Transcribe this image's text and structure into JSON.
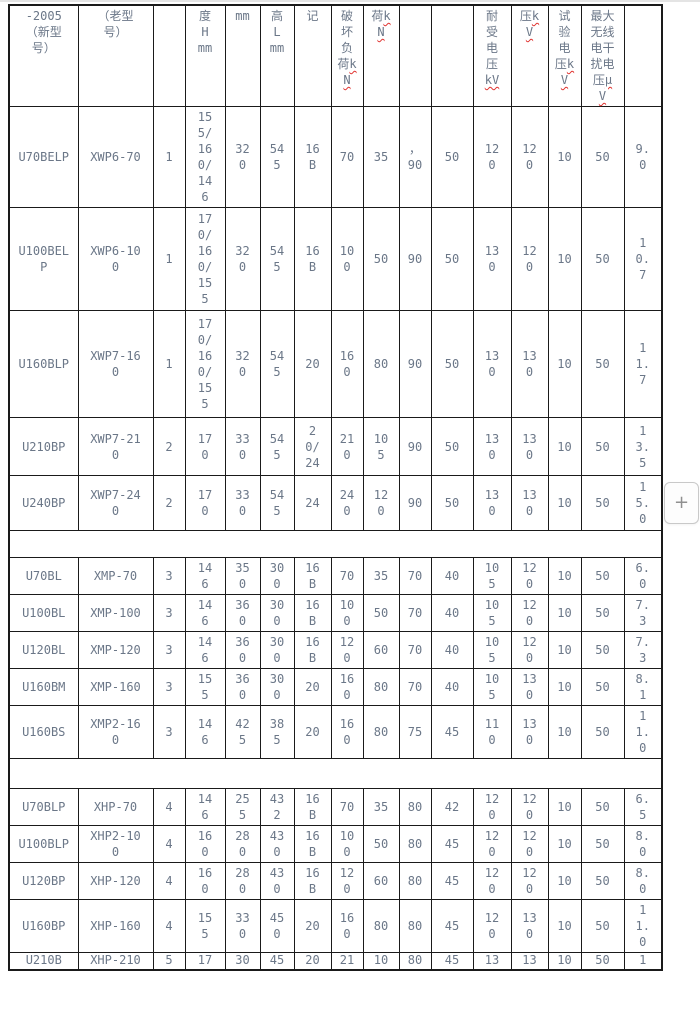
{
  "colors": {
    "text": "#6b7788",
    "border": "#1a1a1a",
    "squiggle": "#e0312e",
    "button_border": "#c9c9c9",
    "button_text": "#909090",
    "divider": "#e4e4e4"
  },
  "add_button": {
    "label": "+"
  },
  "table": {
    "columns": [
      {
        "id": "model-new",
        "label": "-2005（新型号）",
        "unit": ""
      },
      {
        "id": "model-old",
        "label": "（老型号）",
        "unit": ""
      },
      {
        "id": "figure-no",
        "label": "",
        "unit": ""
      },
      {
        "id": "height-h",
        "label": "度H mm",
        "unit": ""
      },
      {
        "id": "diameter-mm",
        "label": "mm",
        "unit": ""
      },
      {
        "id": "distance-l",
        "label": "高L mm",
        "unit": ""
      },
      {
        "id": "mark",
        "label": "记",
        "unit": ""
      },
      {
        "id": "breaking-load",
        "label": "破坏负荷",
        "unit": "kN"
      },
      {
        "id": "load",
        "label": "荷",
        "unit": "kN"
      },
      {
        "id": "col-10",
        "label": "",
        "unit": ""
      },
      {
        "id": "col-11",
        "label": "",
        "unit": ""
      },
      {
        "id": "withstand-voltage",
        "label": "耐受电压",
        "unit": "kV"
      },
      {
        "id": "voltage",
        "label": "压",
        "unit": "kV"
      },
      {
        "id": "test-voltage",
        "label": "试验电压",
        "unit": "kV"
      },
      {
        "id": "max-rfi-voltage",
        "label": "最大无线电干扰电压",
        "unit": "μV"
      },
      {
        "id": "col-16",
        "label": "",
        "unit": ""
      }
    ],
    "rows": [
      {
        "type": "data",
        "cells": [
          "U70BELP",
          "XWP6-70",
          "1",
          "155/160/146",
          "320",
          "545",
          "16B",
          "70",
          "35",
          "，90",
          "50",
          "120",
          "120",
          "10",
          "50",
          "9.0"
        ]
      },
      {
        "type": "data",
        "cells": [
          "U100BELP",
          "XWP6-100",
          "1",
          "170/160/155",
          "320",
          "545",
          "16B",
          "100",
          "50",
          "90",
          "50",
          "130",
          "120",
          "10",
          "50",
          "10.7"
        ]
      },
      {
        "type": "data",
        "cells": [
          "U160BLP",
          "XWP7-160",
          "1",
          "170/160/155",
          "320",
          "545",
          "20",
          "160",
          "80",
          "90",
          "50",
          "130",
          "130",
          "10",
          "50",
          "11.7"
        ]
      },
      {
        "type": "data",
        "cells": [
          "U210BP",
          "XWP7-210",
          "2",
          "170",
          "330",
          "545",
          "20/24",
          "210",
          "105",
          "90",
          "50",
          "130",
          "130",
          "10",
          "50",
          "13.5"
        ]
      },
      {
        "type": "data",
        "cells": [
          "U240BP",
          "XWP7-240",
          "2",
          "170",
          "330",
          "545",
          "24",
          "240",
          "120",
          "90",
          "50",
          "130",
          "130",
          "10",
          "50",
          "15.0"
        ]
      },
      {
        "type": "separator"
      },
      {
        "type": "data",
        "cells": [
          "U70BL",
          "XMP-70",
          "3",
          "146",
          "350",
          "300",
          "16B",
          "70",
          "35",
          "70",
          "40",
          "105",
          "120",
          "10",
          "50",
          "6.0"
        ]
      },
      {
        "type": "data",
        "cells": [
          "U100BL",
          "XMP-100",
          "3",
          "146",
          "360",
          "300",
          "16B",
          "100",
          "50",
          "70",
          "40",
          "105",
          "120",
          "10",
          "50",
          "7.3"
        ]
      },
      {
        "type": "data",
        "cells": [
          "U120BL",
          "XMP-120",
          "3",
          "146",
          "360",
          "300",
          "16B",
          "120",
          "60",
          "70",
          "40",
          "105",
          "120",
          "10",
          "50",
          "7.3"
        ]
      },
      {
        "type": "data",
        "cells": [
          "U160BM",
          "XMP-160",
          "3",
          "155",
          "360",
          "300",
          "20",
          "160",
          "80",
          "70",
          "40",
          "105",
          "130",
          "10",
          "50",
          "8.1"
        ]
      },
      {
        "type": "data",
        "cells": [
          "U160BS",
          "XMP2-160",
          "3",
          "146",
          "425",
          "385",
          "20",
          "160",
          "80",
          "75",
          "45",
          "110",
          "130",
          "10",
          "50",
          "11.0"
        ]
      },
      {
        "type": "separator"
      },
      {
        "type": "data",
        "cells": [
          "U70BLP",
          "XHP-70",
          "4",
          "146",
          "255",
          "432",
          "16B",
          "70",
          "35",
          "80",
          "42",
          "120",
          "120",
          "10",
          "50",
          "6.5"
        ]
      },
      {
        "type": "data",
        "cells": [
          "U100BLP",
          "XHP2-100",
          "4",
          "160",
          "280",
          "430",
          "16B",
          "100",
          "50",
          "80",
          "45",
          "120",
          "120",
          "10",
          "50",
          "8.0"
        ]
      },
      {
        "type": "data",
        "cells": [
          "U120BP",
          "XHP-120",
          "4",
          "160",
          "280",
          "430",
          "16B",
          "120",
          "60",
          "80",
          "45",
          "120",
          "120",
          "10",
          "50",
          "8.0"
        ]
      },
      {
        "type": "data",
        "cells": [
          "U160BP",
          "XHP-160",
          "4",
          "155",
          "330",
          "450",
          "20",
          "160",
          "80",
          "80",
          "45",
          "120",
          "130",
          "10",
          "50",
          "11.0"
        ]
      },
      {
        "type": "data-clipped",
        "cells": [
          "U210B",
          "XHP-210",
          "5",
          "17",
          "30",
          "45",
          "20",
          "21",
          "10",
          "80",
          "45",
          "13",
          "13",
          "10",
          "50",
          "1"
        ]
      }
    ]
  }
}
